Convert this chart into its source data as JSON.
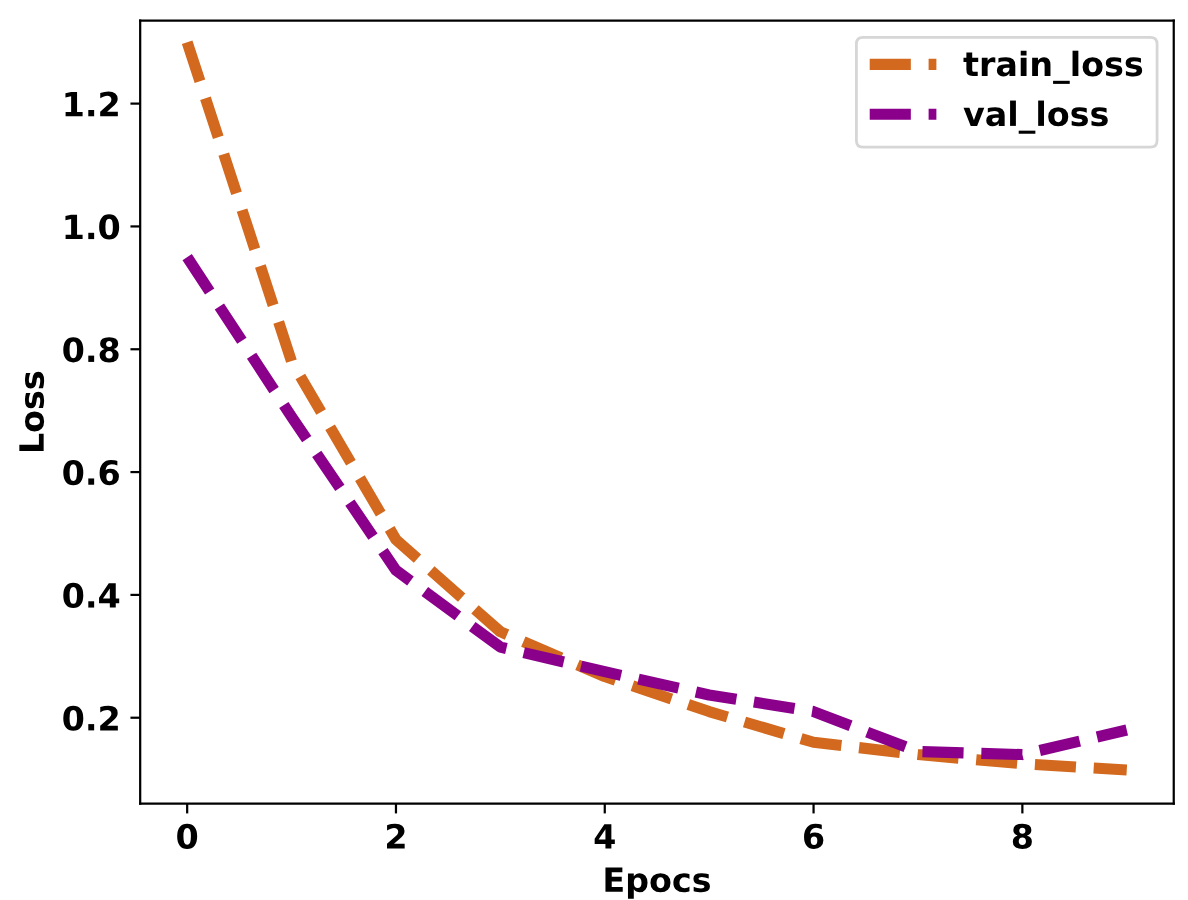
{
  "chart_data": {
    "type": "line",
    "xlabel": "Epocs",
    "ylabel": "Loss",
    "x": [
      0,
      1,
      2,
      3,
      4,
      5,
      6,
      7,
      8,
      9
    ],
    "series": [
      {
        "name": "train_loss",
        "color": "#d2691e",
        "values": [
          1.3,
          0.78,
          0.49,
          0.34,
          0.267,
          0.21,
          0.16,
          0.14,
          0.125,
          0.115
        ]
      },
      {
        "name": "val_loss",
        "color": "#8b008b",
        "values": [
          0.95,
          0.69,
          0.44,
          0.315,
          0.275,
          0.237,
          0.21,
          0.145,
          0.14,
          0.18
        ]
      }
    ],
    "xlim": [
      -0.45,
      9.45
    ],
    "ylim": [
      0.06,
      1.335
    ],
    "xticks": [
      0,
      2,
      4,
      6,
      8
    ],
    "yticks": [
      0.2,
      0.4,
      0.6,
      0.8,
      {
        "value": 1,
        "label": "1.0"
      },
      1.2
    ],
    "line_style": "dashed",
    "legend": "top right",
    "grid": false
  }
}
